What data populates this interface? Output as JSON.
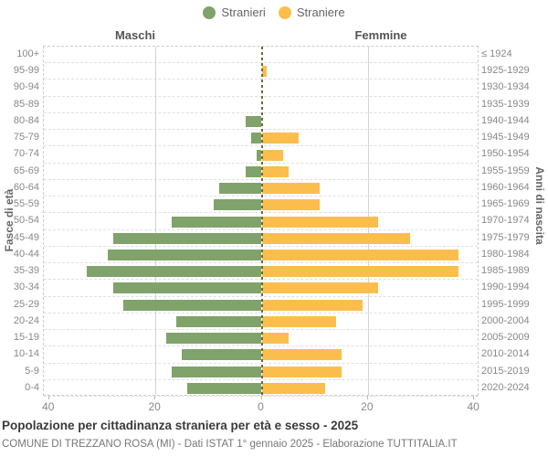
{
  "legend": {
    "items": [
      {
        "label": "Stranieri",
        "color": "#7FA36A"
      },
      {
        "label": "Straniere",
        "color": "#FBBE4D"
      }
    ]
  },
  "headers": {
    "left": "Maschi",
    "right": "Femmine"
  },
  "axes": {
    "left_title": "Fasce di età",
    "right_title": "Anni di nascita",
    "x_tick_labels": [
      "40",
      "20",
      "0",
      "20",
      "40"
    ],
    "x_tick_values": [
      -40,
      -20,
      0,
      20,
      40
    ]
  },
  "footer": {
    "title": "Popolazione per cittadinanza straniera per età e sesso - 2025",
    "source": "COMUNE DI TREZZANO ROSA (MI) - Dati ISTAT 1° gennaio 2025 - Elaborazione TUTTITALIA.IT"
  },
  "chart_data": {
    "type": "bar",
    "subtype": "population-pyramid",
    "title": "Popolazione per cittadinanza straniera per età e sesso - 2025",
    "categories": [
      "100+",
      "95-99",
      "90-94",
      "85-89",
      "80-84",
      "75-79",
      "70-74",
      "65-69",
      "60-64",
      "55-59",
      "50-54",
      "45-49",
      "40-44",
      "35-39",
      "30-34",
      "25-29",
      "20-24",
      "15-19",
      "10-14",
      "5-9",
      "0-4"
    ],
    "birth_years": [
      "≤ 1924",
      "1925-1929",
      "1930-1934",
      "1935-1939",
      "1940-1944",
      "1945-1949",
      "1950-1954",
      "1955-1959",
      "1960-1964",
      "1965-1969",
      "1970-1974",
      "1975-1979",
      "1980-1984",
      "1985-1989",
      "1990-1994",
      "1995-1999",
      "2000-2004",
      "2005-2009",
      "2010-2014",
      "2015-2019",
      "2020-2024"
    ],
    "series": [
      {
        "name": "Stranieri",
        "side": "left",
        "color": "#7FA36A",
        "values": [
          0,
          0,
          0,
          0,
          3,
          2,
          1,
          3,
          8,
          9,
          17,
          28,
          29,
          33,
          28,
          26,
          16,
          18,
          15,
          17,
          14
        ]
      },
      {
        "name": "Straniere",
        "side": "right",
        "color": "#FBBE4D",
        "values": [
          0,
          1,
          0,
          0,
          0,
          7,
          4,
          5,
          11,
          11,
          22,
          28,
          37,
          37,
          22,
          19,
          14,
          5,
          15,
          15,
          12
        ]
      }
    ],
    "xlim": [
      -41,
      41
    ],
    "grid": {
      "vertical_lines_at": [
        -20,
        20
      ],
      "horizontal_rows": "dashed"
    },
    "legend_position": "top-center",
    "ylabel_left": "Fasce di età",
    "ylabel_right": "Anni di nascita"
  }
}
